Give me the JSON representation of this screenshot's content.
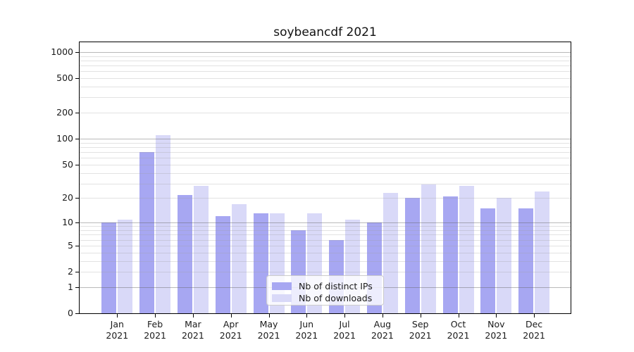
{
  "title": "soybeancdf 2021",
  "chart_data": {
    "type": "bar",
    "title": "soybeancdf 2021",
    "categories": [
      "Jan 2021",
      "Feb 2021",
      "Mar 2021",
      "Apr 2021",
      "May 2021",
      "Jun 2021",
      "Jul 2021",
      "Aug 2021",
      "Sep 2021",
      "Oct 2021",
      "Nov 2021",
      "Dec 2021"
    ],
    "x_tick_months": [
      "Jan",
      "Feb",
      "Mar",
      "Apr",
      "May",
      "Jun",
      "Jul",
      "Aug",
      "Sep",
      "Oct",
      "Nov",
      "Dec"
    ],
    "x_tick_year": "2021",
    "series": [
      {
        "name": "Nb of distinct IPs",
        "color": "#a7a7f2",
        "values": [
          10,
          70,
          22,
          12,
          13,
          8,
          6,
          10,
          20,
          21,
          15,
          15
        ]
      },
      {
        "name": "Nb of downloads",
        "color": "#d9d9f8",
        "values": [
          11,
          110,
          28,
          17,
          13,
          13,
          11,
          23,
          29,
          28,
          20,
          24
        ]
      }
    ],
    "yaxis": {
      "scale": "log10(1+x)",
      "tick_labels": [
        "0",
        "1",
        "2",
        "5",
        "10",
        "20",
        "50",
        "100",
        "200",
        "500",
        "1000"
      ],
      "tick_values": [
        0,
        1,
        2,
        5,
        10,
        20,
        50,
        100,
        200,
        500,
        1000
      ],
      "major_gridlines": [
        1,
        10,
        100,
        1000
      ],
      "minor_gridlines": [
        2,
        3,
        4,
        5,
        6,
        7,
        8,
        9,
        20,
        30,
        40,
        50,
        60,
        70,
        80,
        90,
        200,
        300,
        400,
        500,
        600,
        700,
        800,
        900
      ],
      "top_value": 1290
    },
    "xlabel": "",
    "ylabel": "",
    "grid": true,
    "legend_position": "inside lower center"
  },
  "legend": {
    "entries": [
      "Nb of distinct IPs",
      "Nb of downloads"
    ]
  },
  "colors": {
    "bar_ips_fill": "rgba(145,145,239,0.8)",
    "bar_downloads_fill": "rgba(207,207,246,0.8)",
    "bar_ips_solid": "#a7a7f2",
    "bar_downloads_solid": "#d9d9f8",
    "grid_major": "rgba(100,100,100,0.45)",
    "grid_minor": "rgba(160,160,160,0.30)",
    "axis": "#000000",
    "background": "#ffffff",
    "text": "#1a1a1a"
  }
}
